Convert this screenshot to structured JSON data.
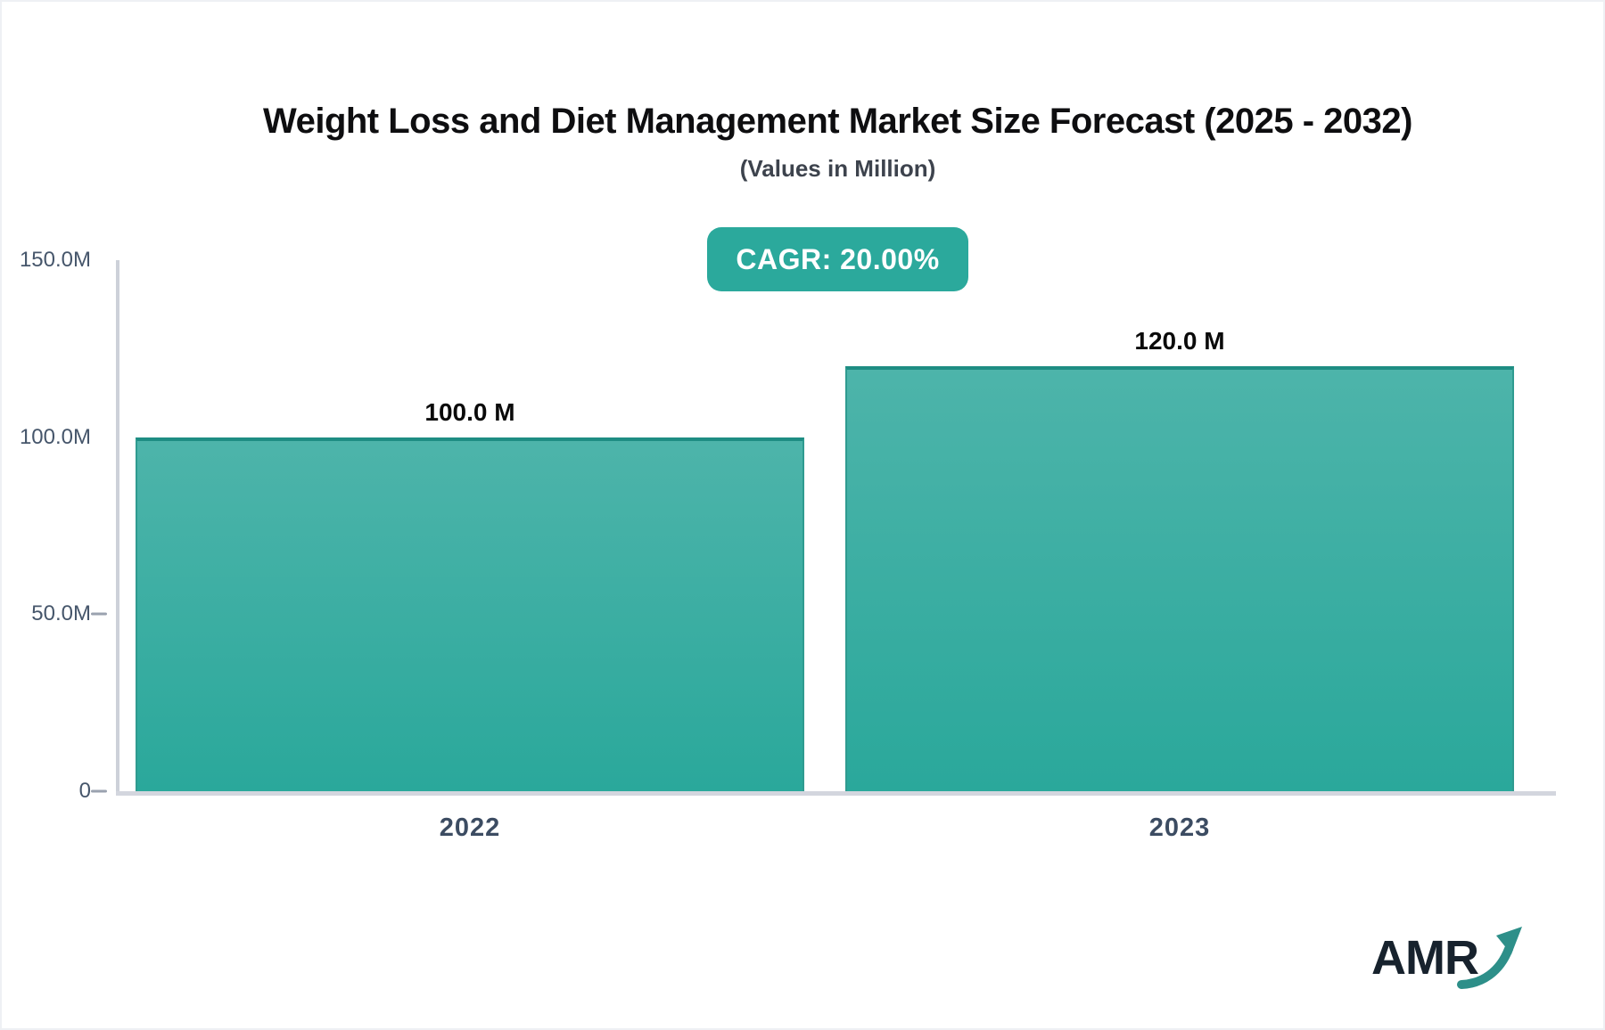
{
  "header": {
    "title": "Weight Loss and Diet Management Market Size Forecast (2025 - 2032)",
    "subtitle": "(Values in Million)",
    "cagr_badge": "CAGR: 20.00%"
  },
  "chart_data": {
    "type": "bar",
    "title": "Weight Loss and Diet Management Market Size Forecast (2025 - 2032)",
    "subtitle": "(Values in Million)",
    "unit": "Million",
    "cagr_percent": "20.00%",
    "categories": [
      "2022",
      "2023"
    ],
    "values": [
      100.0,
      120.0
    ],
    "value_labels": [
      "100.0 M",
      "120.0 M"
    ],
    "ylim": [
      0,
      150
    ],
    "yticks": [
      {
        "value": 150,
        "label": "150.0M"
      },
      {
        "value": 100,
        "label": "100.0M"
      },
      {
        "value": 50,
        "label": "50.0M"
      },
      {
        "value": 0,
        "label": "0"
      }
    ],
    "grid": false,
    "legend_position": "none"
  },
  "branding": {
    "logo_text": "AMR"
  },
  "colors": {
    "title_text": "#0e0e10",
    "subtitle_text": "#3d434d",
    "badge_bg": "#2ba99c",
    "badge_text": "#ffffff",
    "bar_top": "#4db4aa",
    "bar_bottom": "#2aa89b",
    "bar_border": "#2f9b90",
    "bar_border_top": "#1e8d83",
    "axis_line": "#cdd1d9",
    "baseline": "#d3d6de",
    "tick_text": "#46566b",
    "tick_dash": "#9aa2af",
    "xtick_text": "#3c4c62",
    "value_text": "#0a0a0a",
    "logo_text": "#17222d",
    "logo_arrow": "#2d8f89"
  }
}
